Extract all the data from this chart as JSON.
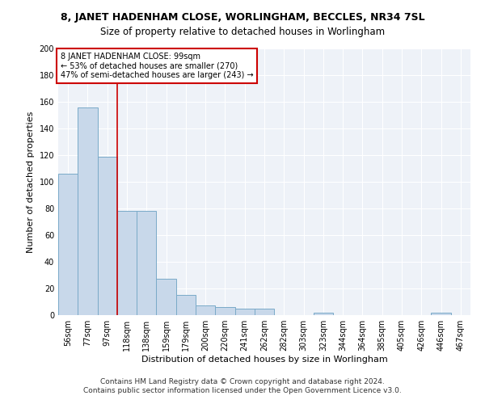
{
  "title1": "8, JANET HADENHAM CLOSE, WORLINGHAM, BECCLES, NR34 7SL",
  "title2": "Size of property relative to detached houses in Worlingham",
  "xlabel": "Distribution of detached houses by size in Worlingham",
  "ylabel": "Number of detached properties",
  "bar_color": "#c8d8ea",
  "bar_edge_color": "#7aaac8",
  "categories": [
    "56sqm",
    "77sqm",
    "97sqm",
    "118sqm",
    "138sqm",
    "159sqm",
    "179sqm",
    "200sqm",
    "220sqm",
    "241sqm",
    "262sqm",
    "282sqm",
    "303sqm",
    "323sqm",
    "344sqm",
    "364sqm",
    "385sqm",
    "405sqm",
    "426sqm",
    "446sqm",
    "467sqm"
  ],
  "values": [
    106,
    156,
    119,
    78,
    78,
    27,
    15,
    7,
    6,
    5,
    5,
    0,
    0,
    2,
    0,
    0,
    0,
    0,
    0,
    2,
    0
  ],
  "vline_x": 2.5,
  "vline_color": "#cc0000",
  "annotation_text": "8 JANET HADENHAM CLOSE: 99sqm\n← 53% of detached houses are smaller (270)\n47% of semi-detached houses are larger (243) →",
  "annotation_box_color": "white",
  "annotation_box_edge": "#cc0000",
  "ylim": [
    0,
    200
  ],
  "yticks": [
    0,
    20,
    40,
    60,
    80,
    100,
    120,
    140,
    160,
    180,
    200
  ],
  "bg_color": "#eef2f8",
  "footer1": "Contains HM Land Registry data © Crown copyright and database right 2024.",
  "footer2": "Contains public sector information licensed under the Open Government Licence v3.0.",
  "title1_fontsize": 9,
  "title2_fontsize": 8.5,
  "annotation_fontsize": 7,
  "ylabel_fontsize": 8,
  "xlabel_fontsize": 8,
  "tick_fontsize": 7,
  "footer_fontsize": 6.5
}
